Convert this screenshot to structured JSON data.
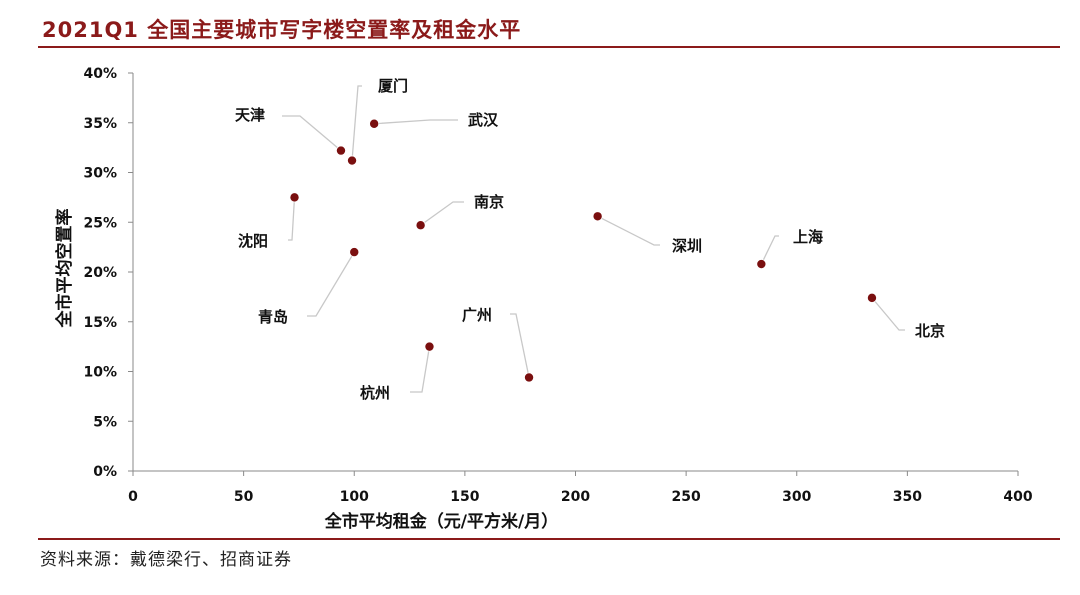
{
  "title": "2021Q1 全国主要城市写字楼空置率及租金水平",
  "source": "资料来源：戴德梁行、招商证券",
  "colors": {
    "accent": "#8b1a1a",
    "marker": "#7a0f0f"
  },
  "chart_data": {
    "type": "scatter",
    "xlabel": "全市平均租金（元/平方米/月）",
    "ylabel": "全市平均空置率",
    "xlim": [
      0,
      400
    ],
    "ylim": [
      0,
      40
    ],
    "x_ticks": [
      "0",
      "50",
      "100",
      "150",
      "200",
      "250",
      "300",
      "350",
      "400"
    ],
    "y_ticks": [
      "0%",
      "5%",
      "10%",
      "15%",
      "20%",
      "25%",
      "30%",
      "35%",
      "40%"
    ],
    "grid": false,
    "points": [
      {
        "label": "天津",
        "x": 94,
        "y": 32.2
      },
      {
        "label": "厦门",
        "x": 99,
        "y": 31.2
      },
      {
        "label": "武汉",
        "x": 109,
        "y": 34.9
      },
      {
        "label": "沈阳",
        "x": 73,
        "y": 27.5
      },
      {
        "label": "南京",
        "x": 130,
        "y": 24.7
      },
      {
        "label": "深圳",
        "x": 210,
        "y": 25.6
      },
      {
        "label": "上海",
        "x": 284,
        "y": 20.8
      },
      {
        "label": "青岛",
        "x": 100,
        "y": 22.0
      },
      {
        "label": "北京",
        "x": 334,
        "y": 17.4
      },
      {
        "label": "广州",
        "x": 179,
        "y": 9.4
      },
      {
        "label": "杭州",
        "x": 134,
        "y": 12.5
      }
    ]
  }
}
